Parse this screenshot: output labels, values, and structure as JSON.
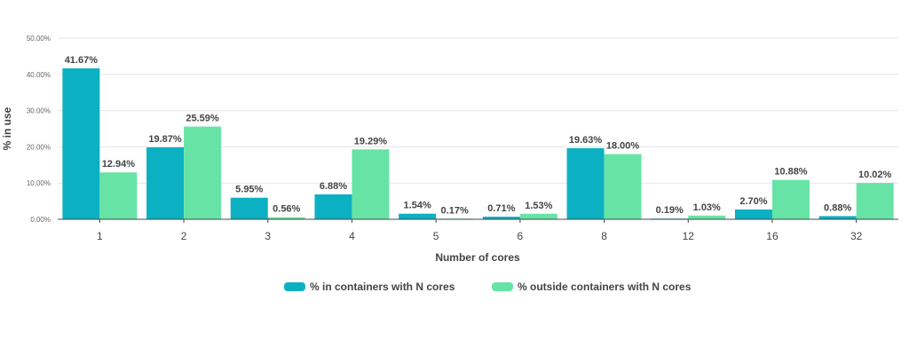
{
  "chart_data": {
    "type": "bar",
    "categories": [
      "1",
      "2",
      "3",
      "4",
      "5",
      "6",
      "8",
      "12",
      "16",
      "32"
    ],
    "series": [
      {
        "name": "% in containers with N cores",
        "color": "#0bb1c3",
        "values": [
          41.67,
          19.87,
          5.95,
          6.88,
          1.54,
          0.71,
          19.63,
          0.19,
          2.7,
          0.88
        ],
        "labels": [
          "41.67%",
          "19.87%",
          "5.95%",
          "6.88%",
          "1.54%",
          "0.71%",
          "19.63%",
          "0.19%",
          "2.70%",
          "0.88%"
        ]
      },
      {
        "name": "% outside containers with N cores",
        "color": "#67e4a5",
        "values": [
          12.94,
          25.59,
          0.56,
          19.29,
          0.17,
          1.53,
          18.0,
          1.03,
          10.88,
          10.02
        ],
        "labels": [
          "12.94%",
          "25.59%",
          "0.56%",
          "19.29%",
          "0.17%",
          "1.53%",
          "18.00%",
          "1.03%",
          "10.88%",
          "10.02%"
        ]
      }
    ],
    "xlabel": "Number of cores",
    "ylabel": "% in use",
    "ylim": [
      0,
      50
    ],
    "yticks": [
      0,
      10,
      20,
      30,
      40,
      50
    ],
    "ytick_labels": [
      "0.00%",
      "10.00%",
      "20.00%",
      "30.00%",
      "40.00%",
      "50.00%"
    ],
    "grid": true,
    "legend_position": "bottom"
  }
}
